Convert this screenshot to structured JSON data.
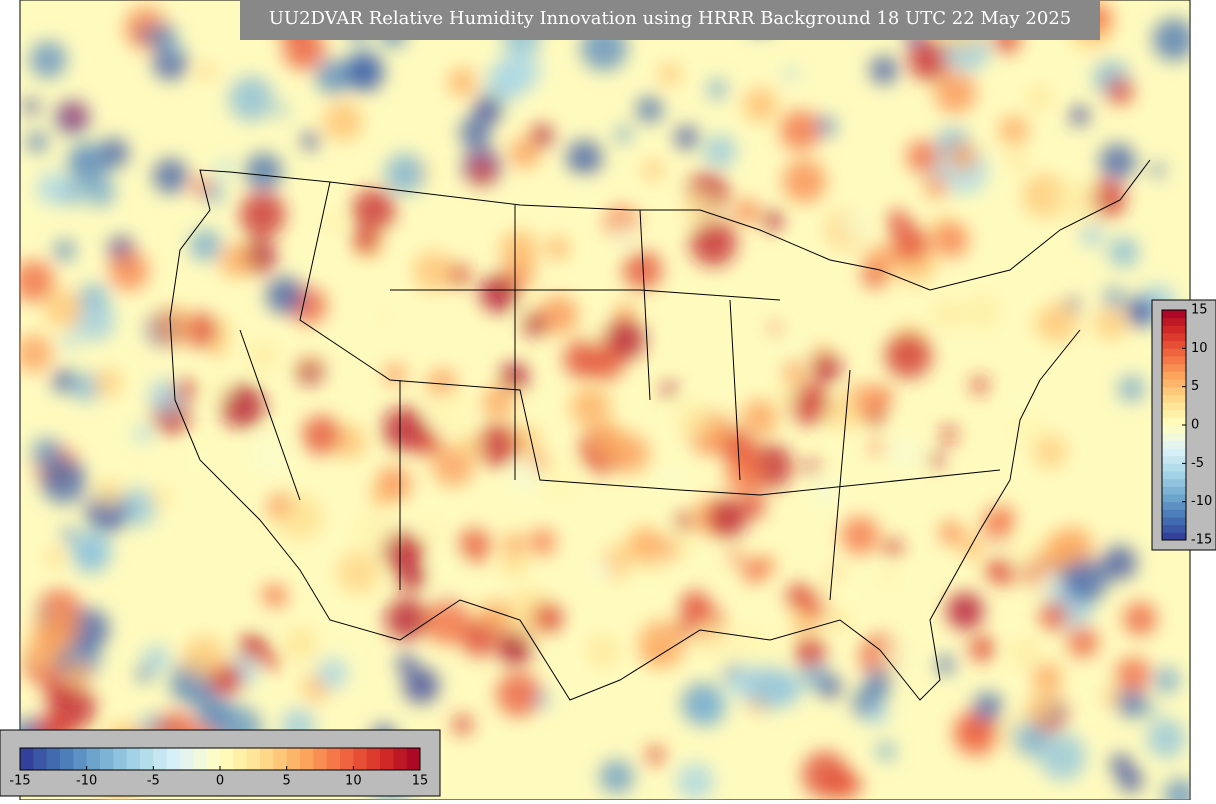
{
  "title": "UU2DVAR Relative Humidity Innovation using HRRR Background 18 UTC 22 May 2025",
  "colorbar": {
    "range": [
      -15,
      15
    ],
    "ticks": [
      -15,
      -10,
      -5,
      0,
      5,
      10,
      15
    ],
    "colormap": [
      "#313695",
      "#4575b4",
      "#74add1",
      "#abd9e9",
      "#e0f3f8",
      "#ffffbf",
      "#fee090",
      "#fdae61",
      "#f46d43",
      "#d73027",
      "#a50026"
    ]
  },
  "colorbar_vertical": {
    "range": [
      -15,
      15
    ],
    "ticks": [
      -15,
      -10,
      -5,
      0,
      5,
      10,
      15
    ]
  }
}
